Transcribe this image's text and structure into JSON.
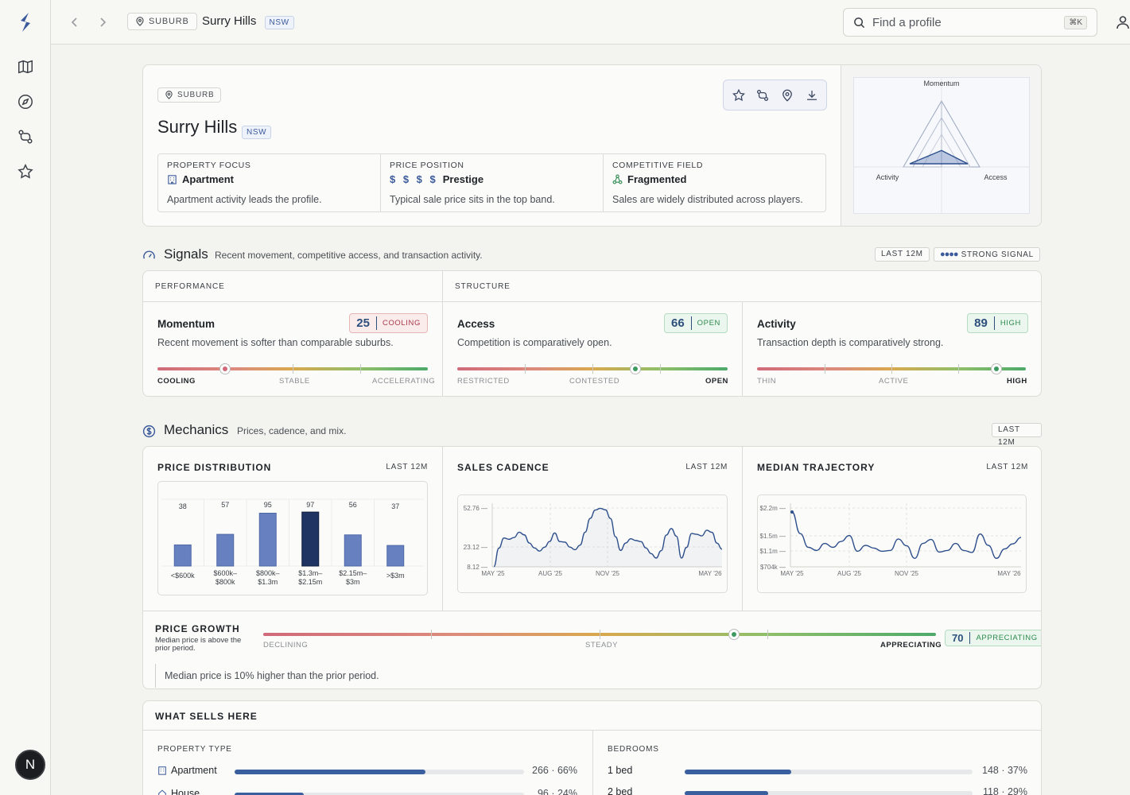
{
  "breadcrumb": {
    "chip": "SUBURB",
    "title": "Surry Hills",
    "state": "NSW"
  },
  "search": {
    "placeholder": "Find a profile",
    "shortcut": "⌘K"
  },
  "sidebar": {
    "icons": [
      "map-icon",
      "compass-icon",
      "compare-icon",
      "star-icon"
    ],
    "avatar": "N"
  },
  "hero": {
    "chip": "SUBURB",
    "title": "Surry Hills",
    "state": "NSW",
    "actions": [
      "star-icon",
      "compare-icon",
      "pin-icon",
      "download-icon"
    ],
    "facts": [
      {
        "label": "PROPERTY FOCUS",
        "value": "Apartment",
        "icon": "building-icon",
        "desc": "Apartment activity leads the profile."
      },
      {
        "label": "PRICE POSITION",
        "prefix": "$ $ $ $",
        "value": "Prestige",
        "desc": "Typical sale price sits in the top band."
      },
      {
        "label": "COMPETITIVE FIELD",
        "value": "Fragmented",
        "icon": "network-icon",
        "desc": "Sales are widely distributed across players."
      }
    ],
    "radar": {
      "labels": [
        "Momentum",
        "Activity",
        "Access"
      ],
      "values": [
        25,
        89,
        66
      ]
    }
  },
  "signals": {
    "title": "Signals",
    "subtitle": "Recent movement, competitive access, and transaction activity.",
    "period": "LAST 12M",
    "strength": "STRONG SIGNAL",
    "groups": [
      "PERFORMANCE",
      "STRUCTURE"
    ],
    "items": [
      {
        "name": "Momentum",
        "score": "25",
        "level": "COOLING",
        "desc": "Recent movement is softer than comparable suburbs.",
        "scale": [
          "COOLING",
          "STABLE",
          "ACCELERATING"
        ],
        "position": 0.25
      },
      {
        "name": "Access",
        "score": "66",
        "level": "OPEN",
        "desc": "Competition is comparatively open.",
        "scale": [
          "RESTRICTED",
          "CONTESTED",
          "OPEN"
        ],
        "position": 0.66
      },
      {
        "name": "Activity",
        "score": "89",
        "level": "HIGH",
        "desc": "Transaction depth is comparatively strong.",
        "scale": [
          "THIN",
          "ACTIVE",
          "HIGH"
        ],
        "position": 0.89
      }
    ]
  },
  "mechanics": {
    "title": "Mechanics",
    "subtitle": "Prices, cadence, and mix.",
    "period": "LAST 12M",
    "panels": [
      {
        "title": "PRICE DISTRIBUTION",
        "period": "LAST 12M"
      },
      {
        "title": "SALES CADENCE",
        "period": "LAST 12M"
      },
      {
        "title": "MEDIAN TRAJECTORY",
        "period": "LAST 12M"
      }
    ],
    "growth": {
      "title": "PRICE GROWTH",
      "subtitle": "Median price is above the prior period.",
      "scale": [
        "DECLINING",
        "STEADY",
        "APPRECIATING"
      ],
      "score": "70",
      "level": "APPRECIATING",
      "position": 0.7,
      "note": "Median price is 10% higher than the prior period."
    }
  },
  "chart_data": [
    {
      "type": "bar",
      "title": "PRICE DISTRIBUTION",
      "categories": [
        [
          "<$600k"
        ],
        [
          "$600k–",
          "$800k"
        ],
        [
          "$800k–",
          "$1.3m"
        ],
        [
          "$1.3m–",
          "$2.15m"
        ],
        [
          "$2.15m–",
          "$3m"
        ],
        [
          ">$3m"
        ]
      ],
      "values": [
        38,
        57,
        95,
        97,
        56,
        37
      ],
      "highlight_index": 3
    },
    {
      "type": "line",
      "title": "SALES CADENCE",
      "y_ticks": [
        "52.76",
        "23.12",
        "8.12"
      ],
      "ylim": [
        8.12,
        52.76
      ],
      "x_ticks": [
        "MAY '25",
        "AUG '25",
        "NOV '25",
        "MAY '26"
      ],
      "values": [
        8.3,
        22.3,
        30,
        29,
        30.4,
        34.4,
        32.4,
        26.2,
        22.5,
        20.1,
        23,
        27.4,
        33.8,
        27.3,
        26.9,
        23.1,
        21.1,
        24.6,
        34.4,
        44.9,
        51.2,
        52.5,
        51.4,
        44.8,
        30.9,
        20.6,
        26.2,
        29.4,
        28.1,
        27.3,
        22.4,
        18.2,
        14.8,
        20.4,
        32.2,
        37.2,
        31.4,
        14.8,
        22.9,
        33.4,
        32.8,
        31.6,
        35.9,
        34.3,
        26.1,
        21.5
      ]
    },
    {
      "type": "line",
      "title": "MEDIAN TRAJECTORY",
      "y_ticks": [
        "$2.2m",
        "$1.5m",
        "$1.1m",
        "$704k"
      ],
      "x_ticks": [
        "MAY '25",
        "AUG '25",
        "NOV '25",
        "MAY '26"
      ],
      "values": [
        2.1,
        1.55,
        1.2,
        1.12,
        1.3,
        1.2,
        1.35,
        1.5,
        1.1,
        1.25,
        1.18,
        1.1,
        1.12,
        1.41,
        1.24,
        0.92,
        1.3,
        1.4,
        1.08,
        1.12,
        1.3,
        1.12,
        1.07,
        1.54,
        1.25,
        0.92,
        1.16,
        1.29,
        1.45
      ]
    },
    {
      "type": "bar",
      "title": "PROPERTY TYPE",
      "categories": [
        "Apartment",
        "House"
      ],
      "values": [
        266,
        96
      ],
      "labels": [
        "266 · 66%",
        "96 · 24%"
      ],
      "shares": [
        0.66,
        0.24
      ]
    },
    {
      "type": "bar",
      "title": "BEDROOMS",
      "categories": [
        "1 bed",
        "2 bed"
      ],
      "values": [
        148,
        118
      ],
      "labels": [
        "148 · 37%",
        "118 · 29%"
      ],
      "shares": [
        0.37,
        0.29
      ]
    }
  ],
  "sells": {
    "title": "WHAT SELLS HERE",
    "type_label": "PROPERTY TYPE",
    "bed_label": "BEDROOMS",
    "types": [
      {
        "name": "Apartment",
        "icon": "building-icon",
        "value": "266 · 66%",
        "share": 0.66
      },
      {
        "name": "House",
        "icon": "house-icon",
        "value": "96 · 24%",
        "share": 0.24
      }
    ],
    "beds": [
      {
        "name": "1 bed",
        "value": "148 · 37%",
        "share": 0.37
      },
      {
        "name": "2 bed",
        "value": "118 · 29%",
        "share": 0.29
      }
    ]
  }
}
